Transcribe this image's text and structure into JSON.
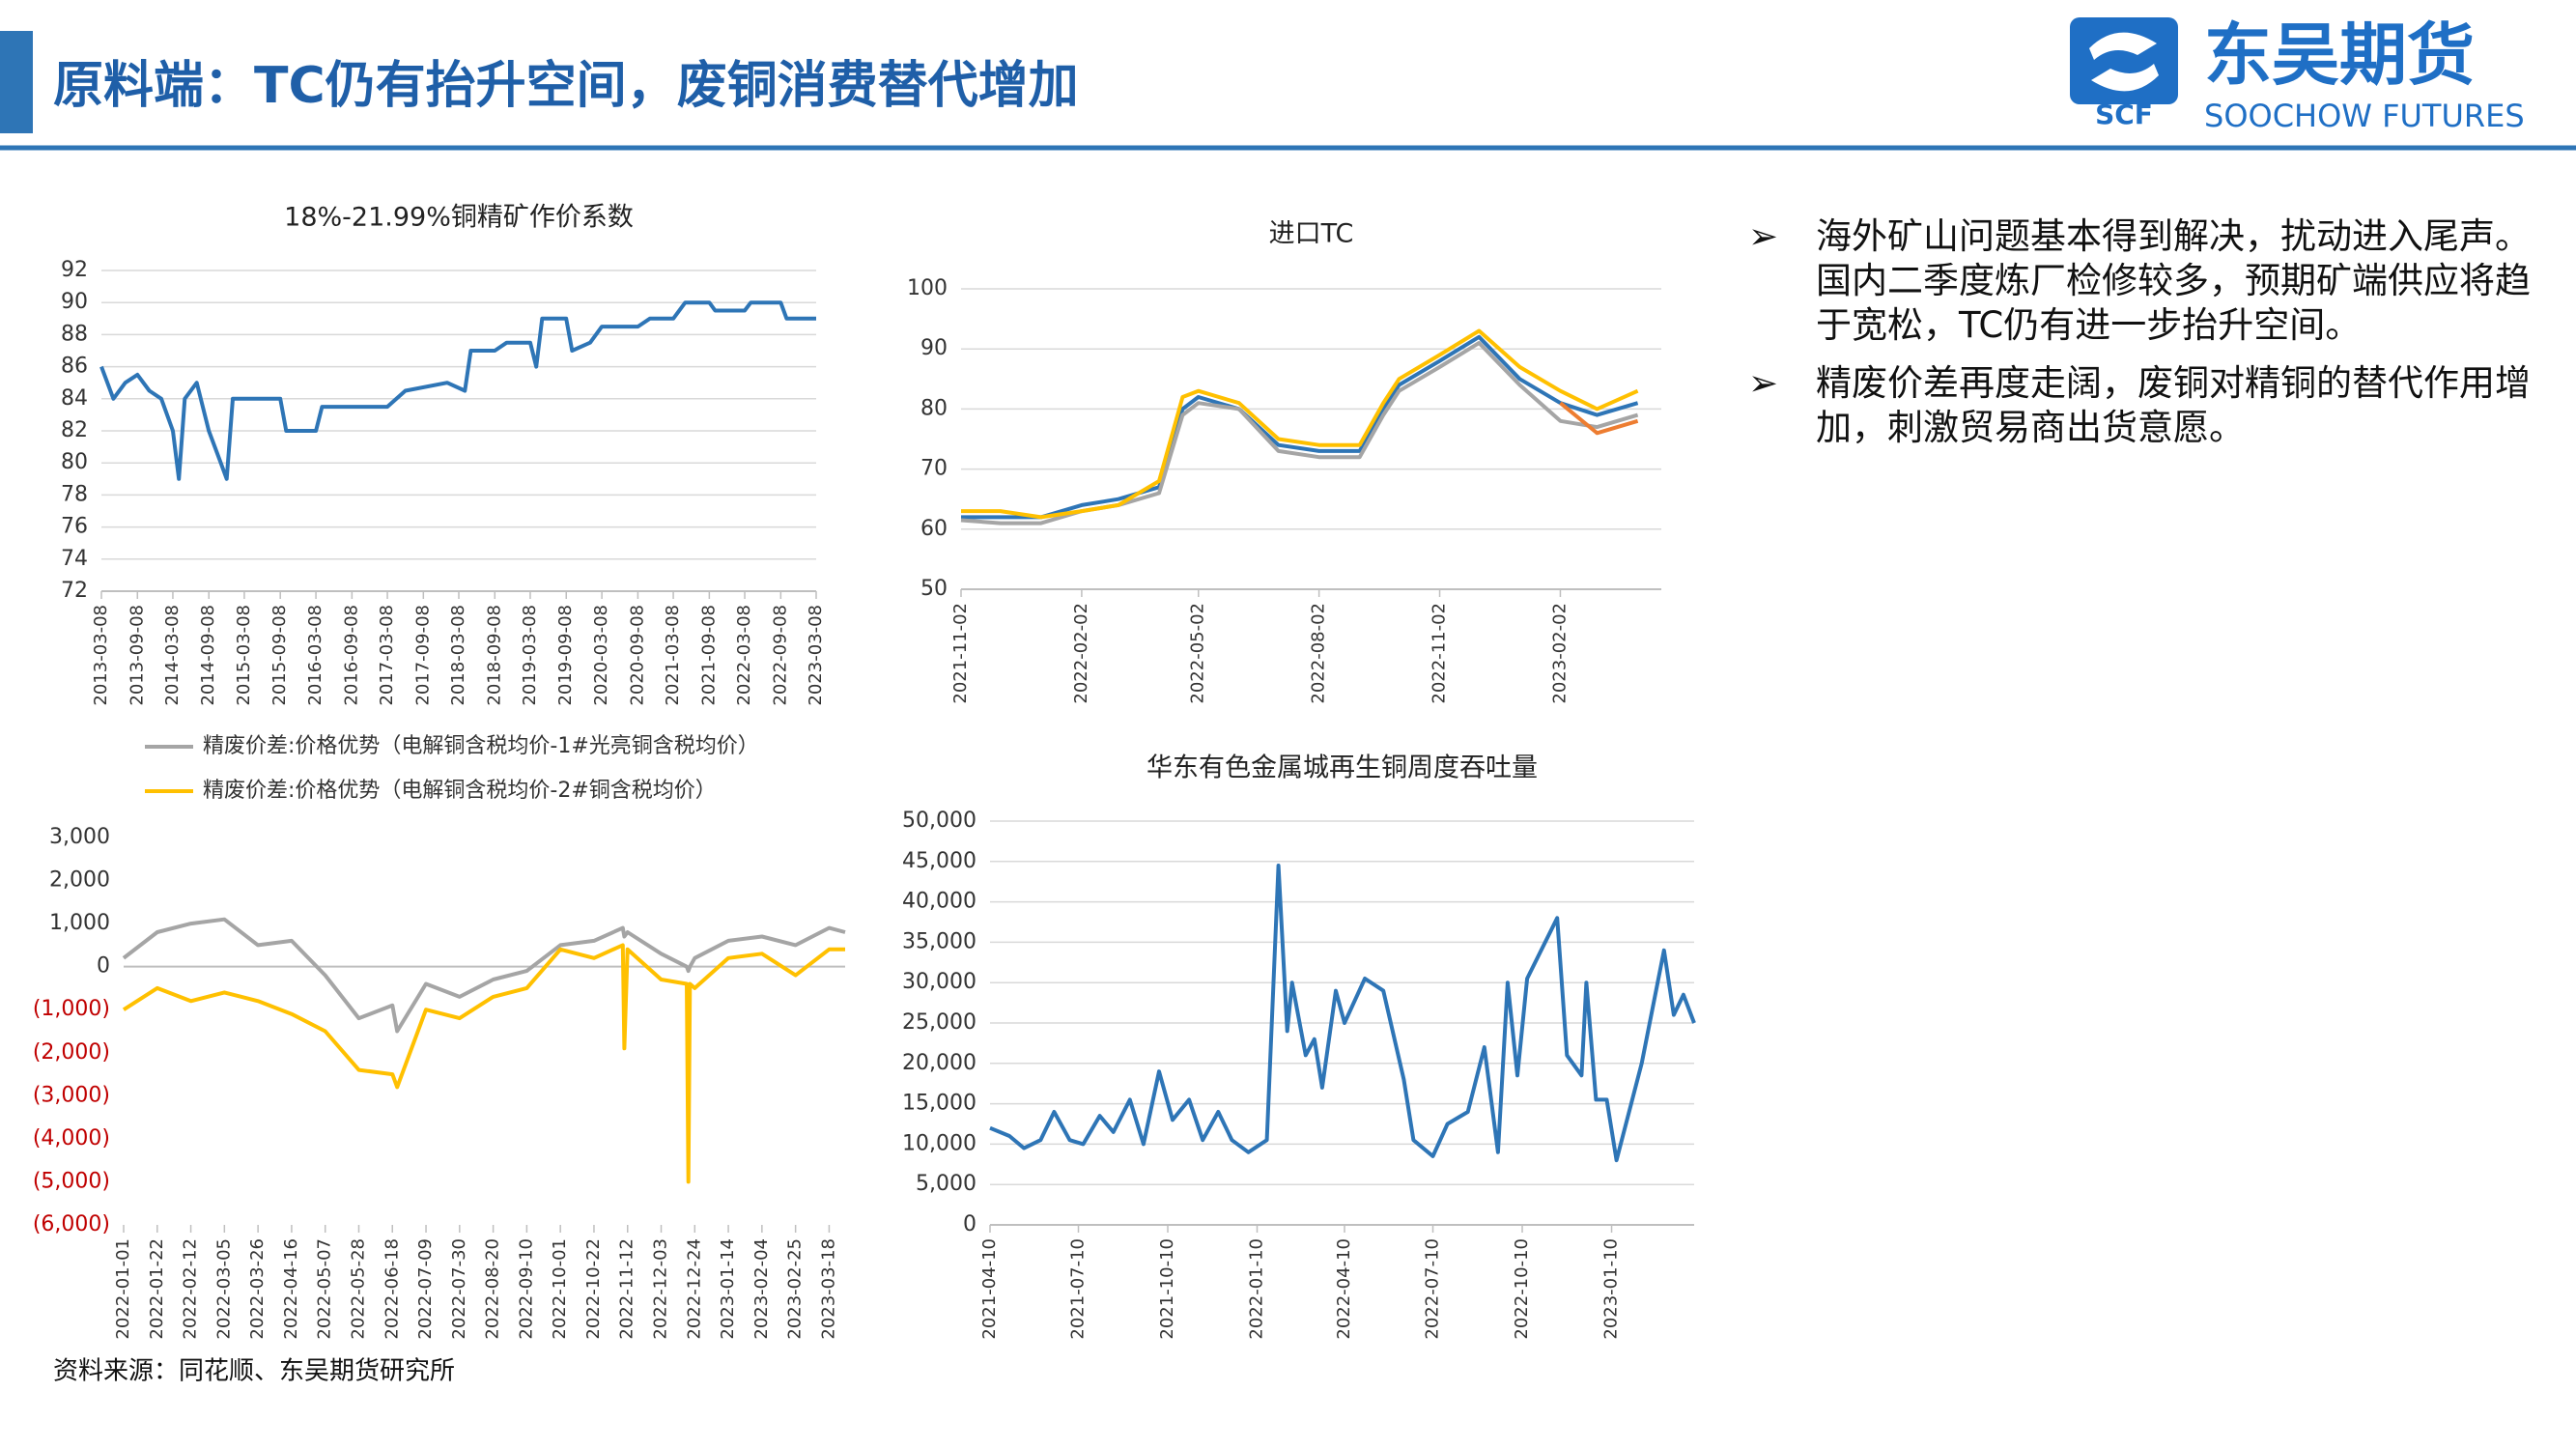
{
  "header": {
    "title": "原料端：TC仍有抬升空间，废铜消费替代增加",
    "logo_cn": "东吴期货",
    "logo_en": "SOOCHOW FUTURES",
    "logo_mark": "SCF"
  },
  "bullets": [
    "海外矿山问题基本得到解决，扰动进入尾声。国内二季度炼厂检修较多，预期矿端供应将趋于宽松，TC仍有进一步抬升空间。",
    "精废价差再度走阔，废铜对精铜的替代作用增加，刺激贸易商出货意愿。"
  ],
  "source": "资料来源：同花顺、东吴期货研究所",
  "chart_data": [
    {
      "type": "line",
      "title": "18%-21.99%铜精矿作价系数",
      "grid": true,
      "x": [
        "2013-03-08",
        "2013-05-08",
        "2013-07-08",
        "2013-09-08",
        "2013-11-08",
        "2014-01-08",
        "2014-03-08",
        "2014-04-08",
        "2014-05-08",
        "2014-07-08",
        "2014-09-08",
        "2014-11-08",
        "2014-12-08",
        "2015-01-08",
        "2015-03-08",
        "2015-09-08",
        "2015-10-08",
        "2016-03-08",
        "2016-04-08",
        "2017-03-08",
        "2017-06-08",
        "2018-01-08",
        "2018-04-08",
        "2018-05-08",
        "2018-09-08",
        "2018-11-08",
        "2019-03-08",
        "2019-04-08",
        "2019-05-08",
        "2019-09-08",
        "2019-10-08",
        "2020-01-08",
        "2020-03-08",
        "2020-09-08",
        "2020-11-08",
        "2021-03-08",
        "2021-05-08",
        "2021-09-08",
        "2021-10-08",
        "2022-03-08",
        "2022-04-08",
        "2022-09-08",
        "2022-10-08",
        "2023-03-08"
      ],
      "series": [
        {
          "color": "#2e75b6",
          "values": [
            86,
            84,
            85,
            85.5,
            84.5,
            84,
            82,
            79,
            84,
            85,
            82,
            80,
            79,
            84,
            84,
            84,
            82,
            82,
            83.5,
            83.5,
            84.5,
            85,
            84.5,
            87,
            87,
            87.5,
            87.5,
            86,
            89,
            89,
            87,
            87.5,
            88.5,
            88.5,
            89,
            89,
            90,
            90,
            89.5,
            89.5,
            90,
            90,
            89,
            89
          ]
        }
      ],
      "xlim": [
        "2013-03-08",
        "2023-03-08"
      ],
      "xticks": [
        "2013-03-08",
        "2013-09-08",
        "2014-03-08",
        "2014-09-08",
        "2015-03-08",
        "2015-09-08",
        "2016-03-08",
        "2016-09-08",
        "2017-03-08",
        "2017-09-08",
        "2018-03-08",
        "2018-09-08",
        "2019-03-08",
        "2019-09-08",
        "2020-03-08",
        "2020-09-08",
        "2021-03-08",
        "2021-09-08",
        "2022-03-08",
        "2022-09-08",
        "2023-03-08"
      ],
      "ylim": [
        72,
        92
      ],
      "yticks": [
        72,
        74,
        76,
        78,
        80,
        82,
        84,
        86,
        88,
        90,
        92
      ]
    },
    {
      "type": "line",
      "title": "进口TC",
      "grid": true,
      "x": [
        "2021-11-02",
        "2021-12-02",
        "2022-01-02",
        "2022-02-02",
        "2022-03-02",
        "2022-04-02",
        "2022-04-20",
        "2022-05-02",
        "2022-06-02",
        "2022-07-02",
        "2022-08-02",
        "2022-09-02",
        "2022-09-20",
        "2022-10-02",
        "2022-11-02",
        "2022-12-02",
        "2023-01-02",
        "2023-02-02",
        "2023-03-02",
        "2023-04-02"
      ],
      "series": [
        {
          "color": "#2e75b6",
          "values": [
            62,
            62,
            62,
            64,
            65,
            67,
            80,
            82,
            80,
            74,
            73,
            73,
            80,
            84,
            88,
            92,
            85,
            81,
            79,
            81
          ]
        },
        {
          "color": "#a5a5a5",
          "values": [
            61.5,
            61,
            61,
            63,
            64,
            66,
            79,
            81,
            80,
            73,
            72,
            72,
            79,
            83,
            87,
            91,
            84,
            78,
            77,
            79
          ]
        },
        {
          "color": "#ed7d31",
          "values": [
            null,
            null,
            null,
            null,
            null,
            null,
            null,
            null,
            null,
            null,
            null,
            null,
            null,
            null,
            null,
            null,
            null,
            81,
            76,
            78
          ]
        },
        {
          "color": "#ffc000",
          "values": [
            63,
            63,
            62,
            63,
            64,
            68,
            82,
            83,
            81,
            75,
            74,
            74,
            81,
            85,
            89,
            93,
            87,
            83,
            80,
            83
          ]
        }
      ],
      "xlim": [
        "2021-11-02",
        "2023-04-20"
      ],
      "xticks": [
        "2021-11-02",
        "2022-02-02",
        "2022-05-02",
        "2022-08-02",
        "2022-11-02",
        "2023-02-02"
      ],
      "ylim": [
        50,
        100
      ],
      "yticks": [
        50,
        60,
        70,
        80,
        90,
        100
      ]
    },
    {
      "type": "line",
      "grid": false,
      "legend": "top-left",
      "negative_tick_color": "#c00000",
      "x": [
        "2022-01-01",
        "2022-01-22",
        "2022-02-12",
        "2022-03-05",
        "2022-03-26",
        "2022-04-16",
        "2022-05-07",
        "2022-05-28",
        "2022-06-18",
        "2022-06-21",
        "2022-07-09",
        "2022-07-30",
        "2022-08-20",
        "2022-09-10",
        "2022-10-01",
        "2022-10-22",
        "2022-11-09",
        "2022-11-10",
        "2022-11-12",
        "2022-12-03",
        "2022-12-19",
        "2022-12-20",
        "2022-12-21",
        "2022-12-24",
        "2023-01-14",
        "2023-02-04",
        "2023-02-25",
        "2023-03-18",
        "2023-03-28"
      ],
      "series": [
        {
          "name": "精废价差:价格优势（电解铜含税均价-1#光亮铜含税均价）",
          "color": "#a5a5a5",
          "values": [
            200,
            800,
            1000,
            1100,
            500,
            600,
            -200,
            -1200,
            -900,
            -1500,
            -400,
            -700,
            -300,
            -100,
            500,
            600,
            900,
            700,
            800,
            300,
            0,
            -100,
            0,
            200,
            600,
            700,
            500,
            900,
            800
          ]
        },
        {
          "name": "精废价差:价格优势（电解铜含税均价-2#铜含税均价）",
          "color": "#ffc000",
          "values": [
            -1000,
            -500,
            -800,
            -600,
            -800,
            -1100,
            -1500,
            -2400,
            -2500,
            -2800,
            -1000,
            -1200,
            -700,
            -500,
            400,
            200,
            500,
            -1900,
            400,
            -300,
            -400,
            -5000,
            -400,
            -500,
            200,
            300,
            -200,
            400,
            400
          ]
        }
      ],
      "xlim": [
        "2022-01-01",
        "2023-03-28"
      ],
      "xticks": [
        "2022-01-01",
        "2022-01-22",
        "2022-02-12",
        "2022-03-05",
        "2022-03-26",
        "2022-04-16",
        "2022-05-07",
        "2022-05-28",
        "2022-06-18",
        "2022-07-09",
        "2022-07-30",
        "2022-08-20",
        "2022-09-10",
        "2022-10-01",
        "2022-10-22",
        "2022-11-12",
        "2022-12-03",
        "2022-12-24",
        "2023-01-14",
        "2023-02-04",
        "2023-02-25",
        "2023-03-18"
      ],
      "ylim": [
        -6000,
        3000
      ],
      "yticks": [
        {
          "value": -6000,
          "label": "(6,000)"
        },
        {
          "value": -5000,
          "label": "(5,000)"
        },
        {
          "value": -4000,
          "label": "(4,000)"
        },
        {
          "value": -3000,
          "label": "(3,000)"
        },
        {
          "value": -2000,
          "label": "(2,000)"
        },
        {
          "value": -1000,
          "label": "(1,000)"
        },
        0,
        {
          "value": 1000,
          "label": "1,000"
        },
        {
          "value": 2000,
          "label": "2,000"
        },
        {
          "value": 3000,
          "label": "3,000"
        }
      ]
    },
    {
      "type": "line",
      "title": "华东有色金属城再生铜周度吞吐量",
      "grid": true,
      "x": [
        "2021-04-10",
        "2021-04-30",
        "2021-05-15",
        "2021-06-01",
        "2021-06-15",
        "2021-07-01",
        "2021-07-15",
        "2021-08-01",
        "2021-08-15",
        "2021-09-01",
        "2021-09-15",
        "2021-10-01",
        "2021-10-15",
        "2021-11-01",
        "2021-11-15",
        "2021-12-01",
        "2021-12-15",
        "2022-01-01",
        "2022-01-20",
        "2022-02-01",
        "2022-02-10",
        "2022-02-15",
        "2022-03-01",
        "2022-03-10",
        "2022-03-18",
        "2022-04-01",
        "2022-04-10",
        "2022-05-01",
        "2022-05-20",
        "2022-06-10",
        "2022-06-20",
        "2022-07-10",
        "2022-07-25",
        "2022-08-15",
        "2022-09-01",
        "2022-09-15",
        "2022-09-25",
        "2022-10-05",
        "2022-10-15",
        "2022-11-15",
        "2022-11-25",
        "2022-12-10",
        "2022-12-15",
        "2022-12-25",
        "2023-01-05",
        "2023-01-15",
        "2023-02-10",
        "2023-03-05",
        "2023-03-15",
        "2023-03-25",
        "2023-04-05"
      ],
      "series": [
        {
          "color": "#2e75b6",
          "values": [
            12000,
            11000,
            9500,
            10500,
            14000,
            10500,
            10000,
            13500,
            11500,
            15500,
            10000,
            19000,
            13000,
            15500,
            10500,
            14000,
            10500,
            9000,
            10500,
            44500,
            24000,
            30000,
            21000,
            23000,
            17000,
            29000,
            25000,
            30500,
            29000,
            18000,
            10500,
            8500,
            12500,
            14000,
            22000,
            9000,
            30000,
            18500,
            30500,
            38000,
            21000,
            18500,
            30000,
            15500,
            15500,
            8000,
            20000,
            34000,
            26000,
            28500,
            25000
          ]
        }
      ],
      "xlim": [
        "2021-04-10",
        "2023-04-05"
      ],
      "xticks": [
        "2021-04-10",
        "2021-07-10",
        "2021-10-10",
        "2022-01-10",
        "2022-04-10",
        "2022-07-10",
        "2022-10-10",
        "2023-01-10"
      ],
      "ylim": [
        0,
        50000
      ],
      "yticks": [
        0,
        {
          "value": 5000,
          "label": "5,000"
        },
        {
          "value": 10000,
          "label": "10,000"
        },
        {
          "value": 15000,
          "label": "15,000"
        },
        {
          "value": 20000,
          "label": "20,000"
        },
        {
          "value": 25000,
          "label": "25,000"
        },
        {
          "value": 30000,
          "label": "30,000"
        },
        {
          "value": 35000,
          "label": "35,000"
        },
        {
          "value": 40000,
          "label": "40,000"
        },
        {
          "value": 45000,
          "label": "45,000"
        },
        {
          "value": 50000,
          "label": "50,000"
        }
      ]
    }
  ]
}
